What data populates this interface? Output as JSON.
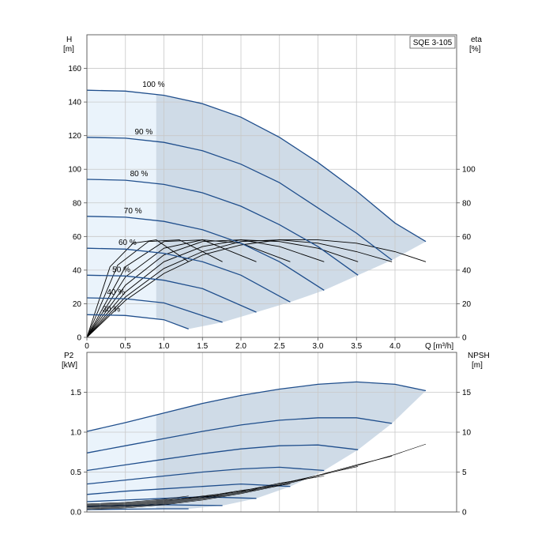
{
  "chart_data": [
    {
      "type": "line",
      "panel": "H-Q",
      "title": "SQE 3-105",
      "xlabel": "Q [m³/h]",
      "ylabel_left": "H",
      "ylabel_left_unit": "[m]",
      "ylabel_right": "eta",
      "ylabel_right_unit": "[%]",
      "xlim": [
        0,
        4.8
      ],
      "ylim": [
        0,
        180
      ],
      "yrlim": [
        0,
        180
      ],
      "xticks": [
        "0",
        "0.5",
        "1.0",
        "1.5",
        "2.0",
        "2.5",
        "3.0",
        "3.5",
        "4.0"
      ],
      "yticks": [
        "0",
        "20",
        "40",
        "60",
        "80",
        "100",
        "120",
        "140",
        "160"
      ],
      "yrticks": [
        "0",
        "20",
        "40",
        "60",
        "80",
        "100"
      ],
      "grid": true,
      "shaded_region": "operating range",
      "series": [
        {
          "name": "100 %",
          "label": "100 %",
          "x": [
            0,
            0.5,
            1.0,
            1.5,
            2.0,
            2.5,
            3.0,
            3.5,
            4.0,
            4.4
          ],
          "y": [
            147,
            146.5,
            144,
            139,
            131,
            119,
            104,
            87,
            68,
            57
          ]
        },
        {
          "name": "90 %",
          "label": "90 %",
          "x": [
            0,
            0.5,
            1.0,
            1.5,
            2.0,
            2.5,
            3.0,
            3.5,
            3.96
          ],
          "y": [
            119,
            118.5,
            116,
            111,
            103,
            92,
            77,
            62,
            46
          ]
        },
        {
          "name": "80 %",
          "label": "80 %",
          "x": [
            0,
            0.5,
            1.0,
            1.5,
            2.0,
            2.5,
            3.0,
            3.52
          ],
          "y": [
            94,
            93.5,
            91,
            86,
            78,
            67,
            54,
            37
          ]
        },
        {
          "name": "70 %",
          "label": "70 %",
          "x": [
            0,
            0.5,
            1.0,
            1.5,
            2.0,
            2.5,
            3.08
          ],
          "y": [
            72,
            71.5,
            69,
            64,
            56,
            45,
            28
          ]
        },
        {
          "name": "60 %",
          "label": "60 %",
          "x": [
            0,
            0.5,
            1.0,
            1.5,
            2.0,
            2.64
          ],
          "y": [
            53,
            52.5,
            50,
            45,
            37,
            21
          ]
        },
        {
          "name": "50 %",
          "label": "50 %",
          "x": [
            0,
            0.5,
            1.0,
            1.5,
            2.2
          ],
          "y": [
            37,
            36.5,
            34,
            29,
            15
          ]
        },
        {
          "name": "40 %",
          "label": "40 %",
          "x": [
            0,
            0.5,
            1.0,
            1.76
          ],
          "y": [
            23.5,
            23,
            20.5,
            9
          ]
        },
        {
          "name": "30 %",
          "label": "30 %",
          "x": [
            0,
            0.5,
            1.0,
            1.32
          ],
          "y": [
            13.5,
            13,
            10.5,
            5
          ]
        }
      ],
      "efficiency_series": [
        {
          "x": [
            0,
            0.5,
            1.0,
            1.5,
            2.0,
            2.5,
            3.0,
            3.5,
            4.0,
            4.4
          ],
          "y": [
            0,
            22,
            38,
            49,
            55,
            58,
            58,
            56,
            51,
            45
          ]
        },
        {
          "x": [
            0,
            0.5,
            1.0,
            1.5,
            2.0,
            2.5,
            3.0,
            3.5,
            3.96
          ],
          "y": [
            0,
            24,
            41,
            51,
            57,
            58,
            56,
            51,
            45
          ]
        },
        {
          "x": [
            0,
            0.5,
            1.0,
            1.5,
            2.0,
            2.5,
            3.0,
            3.52
          ],
          "y": [
            0,
            27,
            45,
            54,
            58,
            57,
            53,
            45
          ]
        },
        {
          "x": [
            0,
            0.5,
            1.0,
            1.5,
            2.0,
            2.5,
            3.08
          ],
          "y": [
            0,
            31,
            49,
            57,
            58,
            54,
            45
          ]
        },
        {
          "x": [
            0,
            0.5,
            1.0,
            1.5,
            2.0,
            2.64
          ],
          "y": [
            0,
            36,
            53,
            58,
            56,
            45
          ]
        },
        {
          "x": [
            0,
            0.5,
            1.0,
            1.5,
            2.2
          ],
          "y": [
            0,
            42,
            57,
            58,
            45
          ]
        },
        {
          "x": [
            0,
            0.4,
            0.8,
            1.2,
            1.76
          ],
          "y": [
            0,
            43,
            57,
            58,
            45
          ]
        },
        {
          "x": [
            0,
            0.3,
            0.6,
            0.9,
            1.32
          ],
          "y": [
            0,
            42,
            56,
            58,
            45
          ]
        }
      ]
    },
    {
      "type": "line",
      "panel": "P2-NPSH",
      "xlabel": "",
      "ylabel_left": "P2",
      "ylabel_left_unit": "[kW]",
      "ylabel_right": "NPSH",
      "ylabel_right_unit": "[m]",
      "xlim": [
        0,
        4.8
      ],
      "ylim": [
        0,
        2.0
      ],
      "yrlim": [
        0,
        20
      ],
      "yticks": [
        "0.0",
        "0.5",
        "1.0",
        "1.5"
      ],
      "yrticks": [
        "0",
        "5",
        "10",
        "15"
      ],
      "grid": true,
      "series": [
        {
          "x": [
            0,
            0.5,
            1.0,
            1.5,
            2.0,
            2.5,
            3.0,
            3.5,
            4.0,
            4.4
          ],
          "y": [
            1.01,
            1.12,
            1.24,
            1.36,
            1.46,
            1.54,
            1.6,
            1.63,
            1.6,
            1.52
          ]
        },
        {
          "x": [
            0,
            0.5,
            1.0,
            1.5,
            2.0,
            2.5,
            3.0,
            3.5,
            3.96
          ],
          "y": [
            0.74,
            0.83,
            0.92,
            1.01,
            1.09,
            1.15,
            1.18,
            1.18,
            1.11
          ]
        },
        {
          "x": [
            0,
            0.5,
            1.0,
            1.5,
            2.0,
            2.5,
            3.0,
            3.52
          ],
          "y": [
            0.52,
            0.59,
            0.66,
            0.73,
            0.79,
            0.83,
            0.84,
            0.78
          ]
        },
        {
          "x": [
            0,
            0.5,
            1.0,
            1.5,
            2.0,
            2.5,
            3.08
          ],
          "y": [
            0.35,
            0.4,
            0.45,
            0.5,
            0.54,
            0.56,
            0.52
          ]
        },
        {
          "x": [
            0,
            0.5,
            1.0,
            1.5,
            2.0,
            2.64
          ],
          "y": [
            0.22,
            0.26,
            0.29,
            0.32,
            0.35,
            0.32
          ]
        },
        {
          "x": [
            0,
            0.5,
            1.0,
            1.5,
            2.2
          ],
          "y": [
            0.13,
            0.15,
            0.17,
            0.19,
            0.17
          ]
        },
        {
          "x": [
            0,
            0.5,
            1.0,
            1.76
          ],
          "y": [
            0.07,
            0.08,
            0.09,
            0.08
          ]
        },
        {
          "x": [
            0,
            0.5,
            1.0,
            1.32
          ],
          "y": [
            0.03,
            0.035,
            0.04,
            0.04
          ]
        }
      ],
      "npsh_series": [
        {
          "x": [
            0,
            0.5,
            1.0,
            1.5,
            2.0,
            2.5,
            3.0,
            3.5,
            4.0,
            4.4
          ],
          "y": [
            0.3,
            0.5,
            0.9,
            1.5,
            2.3,
            3.3,
            4.5,
            5.8,
            7.2,
            8.5
          ]
        },
        {
          "x": [
            0,
            0.5,
            1.0,
            1.5,
            2.0,
            2.5,
            3.0,
            3.5,
            3.96
          ],
          "y": [
            0.4,
            0.6,
            1.0,
            1.6,
            2.4,
            3.4,
            4.6,
            5.9,
            7.0
          ]
        },
        {
          "x": [
            0,
            0.5,
            1.0,
            1.5,
            2.0,
            2.5,
            3.0,
            3.52
          ],
          "y": [
            0.5,
            0.7,
            1.1,
            1.7,
            2.5,
            3.5,
            4.6,
            5.7
          ]
        },
        {
          "x": [
            0,
            0.5,
            1.0,
            1.5,
            2.0,
            2.5,
            3.08
          ],
          "y": [
            0.6,
            0.8,
            1.2,
            1.8,
            2.6,
            3.6,
            4.5
          ]
        },
        {
          "x": [
            0,
            0.5,
            1.0,
            1.5,
            2.0,
            2.64
          ],
          "y": [
            0.7,
            0.9,
            1.3,
            1.9,
            2.7,
            3.5
          ]
        },
        {
          "x": [
            0,
            0.5,
            1.0,
            1.5,
            2.2
          ],
          "y": [
            0.8,
            1.0,
            1.4,
            2.0,
            2.8
          ]
        },
        {
          "x": [
            0,
            0.5,
            1.0,
            1.76
          ],
          "y": [
            0.9,
            1.1,
            1.5,
            2.1
          ]
        },
        {
          "x": [
            0,
            0.5,
            1.0,
            1.32
          ],
          "y": [
            1.0,
            1.2,
            1.6,
            2.0
          ]
        }
      ]
    }
  ]
}
